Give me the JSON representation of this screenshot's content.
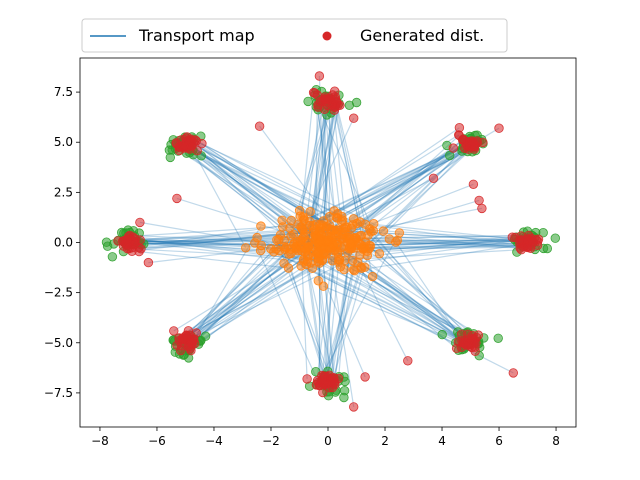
{
  "chart_data": {
    "type": "scatter",
    "xlim": [
      -8.7,
      8.7
    ],
    "ylim": [
      -9.2,
      9.2
    ],
    "x_ticks": [
      -8,
      -6,
      -4,
      -2,
      0,
      2,
      4,
      6,
      8
    ],
    "x_tick_labels": [
      "−8",
      "−6",
      "−4",
      "−2",
      "0",
      "2",
      "4",
      "6",
      "8"
    ],
    "y_ticks": [
      -7.5,
      -5.0,
      -2.5,
      0.0,
      2.5,
      5.0,
      7.5
    ],
    "y_tick_labels": [
      "−7.5",
      "−5.0",
      "−2.5",
      "0.0",
      "2.5",
      "5.0",
      "7.5"
    ],
    "grid": false,
    "legend": {
      "placement": "top-center, above plot",
      "entries": [
        {
          "label": "Transport map",
          "marker": "line",
          "color": "#1f77b4"
        },
        {
          "label": "Generated dist.",
          "marker": "dot",
          "color": "#d62728"
        }
      ]
    },
    "colors": {
      "transport_lines": "#1f77b4",
      "source_points": "#ff7f0e",
      "target_points": "#2ca02c",
      "generated_points": "#d62728"
    },
    "series": [
      {
        "role": "source samples (orange)",
        "cluster": {
          "center": [
            0.0,
            0.0
          ],
          "spread": [
            1.4,
            0.9
          ]
        },
        "count": 240
      },
      {
        "role": "target samples (green)",
        "clusters": [
          [
            7.0,
            0.0
          ],
          [
            4.95,
            4.95
          ],
          [
            0.0,
            7.0
          ],
          [
            -4.95,
            4.95
          ],
          [
            -7.0,
            0.0
          ],
          [
            -4.95,
            -4.95
          ],
          [
            0.0,
            -7.0
          ],
          [
            4.95,
            -4.95
          ]
        ],
        "spread": 0.3,
        "count_per_cluster": 30
      },
      {
        "role": "generated (red)",
        "clusters": [
          [
            7.0,
            0.0
          ],
          [
            4.95,
            4.95
          ],
          [
            0.0,
            7.0
          ],
          [
            -4.95,
            4.95
          ],
          [
            -7.0,
            0.0
          ],
          [
            -4.95,
            -4.95
          ],
          [
            0.0,
            -7.0
          ],
          [
            4.95,
            -4.95
          ]
        ],
        "spread": 0.22,
        "count_per_cluster": 30,
        "outliers": [
          [
            -2.4,
            5.8
          ],
          [
            -5.3,
            2.2
          ],
          [
            -6.3,
            -1.0
          ],
          [
            -6.6,
            1.0
          ],
          [
            3.7,
            3.2
          ],
          [
            5.1,
            2.9
          ],
          [
            5.3,
            2.1
          ],
          [
            5.4,
            1.7
          ],
          [
            6.5,
            -6.5
          ],
          [
            2.8,
            -5.9
          ],
          [
            1.3,
            -6.7
          ],
          [
            0.9,
            -8.2
          ],
          [
            0.9,
            6.2
          ],
          [
            -0.3,
            8.3
          ],
          [
            6.0,
            5.7
          ]
        ]
      }
    ]
  }
}
